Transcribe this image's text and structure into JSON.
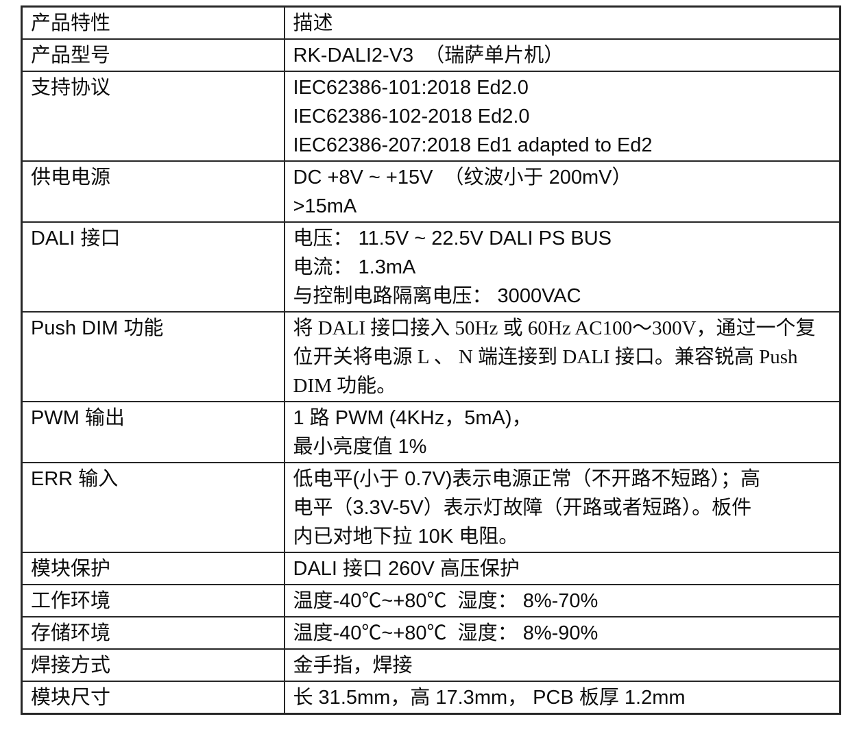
{
  "page": {
    "background_color": "#ffffff",
    "text_color": "#0d0d0d",
    "border_color": "#262626"
  },
  "spec_table": {
    "header": {
      "feature": "产品特性",
      "description": "描述"
    },
    "rows": [
      {
        "feature": "产品型号",
        "description_lines": [
          "RK-DALI2-V3  （瑞萨单片机）"
        ],
        "latin_font": "sans"
      },
      {
        "feature": "支持协议",
        "description_lines": [
          "IEC62386-101:2018 Ed2.0",
          "IEC62386-102-2018 Ed2.0",
          "IEC62386-207:2018 Ed1 adapted to Ed2"
        ],
        "latin_font": "sans"
      },
      {
        "feature": "供电电源",
        "description_lines": [
          "DC +8V ~ +15V  （纹波小于 200mV）",
          ">15mA"
        ],
        "latin_font": "sans"
      },
      {
        "feature": "DALI 接口",
        "description_lines": [
          "电压： 11.5V ~ 22.5V DALI PS BUS",
          "电流： 1.3mA",
          "与控制电路隔离电压： 3000VAC"
        ],
        "latin_font": "sans"
      },
      {
        "feature": "Push DIM 功能",
        "description_lines": [
          "将 DALI 接口接入 50Hz 或 60Hz AC100～300V，通过一个复",
          "位开关将电源 L 、 N 端连接到 DALI 接口。兼容锐高 Push",
          "DIM 功能。"
        ],
        "latin_font": "serif"
      },
      {
        "feature": "PWM 输出",
        "description_lines": [
          "1 路 PWM (4KHz，5mA)，",
          "最小亮度值 1%"
        ],
        "latin_font": "sans"
      },
      {
        "feature": "ERR 输入",
        "description_lines": [
          "低电平(小于 0.7V)表示电源正常（不开路不短路）；高",
          "电平（3.3V-5V）表示灯故障（开路或者短路）。板件",
          "内已对地下拉 10K 电阻。"
        ],
        "latin_font": "sans"
      },
      {
        "feature": "模块保护",
        "description_lines": [
          "DALI 接口 260V 高压保护"
        ],
        "latin_font": "sans"
      },
      {
        "feature": "工作环境",
        "description_lines": [
          "温度-40℃~+80℃  湿度： 8%-70%"
        ],
        "latin_font": "sans"
      },
      {
        "feature": "存储环境",
        "description_lines": [
          "温度-40℃~+80℃  湿度： 8%-90%"
        ],
        "latin_font": "sans"
      },
      {
        "feature": "焊接方式",
        "description_lines": [
          "金手指，焊接"
        ],
        "latin_font": "sans"
      },
      {
        "feature": "模块尺寸",
        "description_lines": [
          "长 31.5mm，高 17.3mm， PCB 板厚 1.2mm"
        ],
        "latin_font": "sans"
      }
    ]
  }
}
